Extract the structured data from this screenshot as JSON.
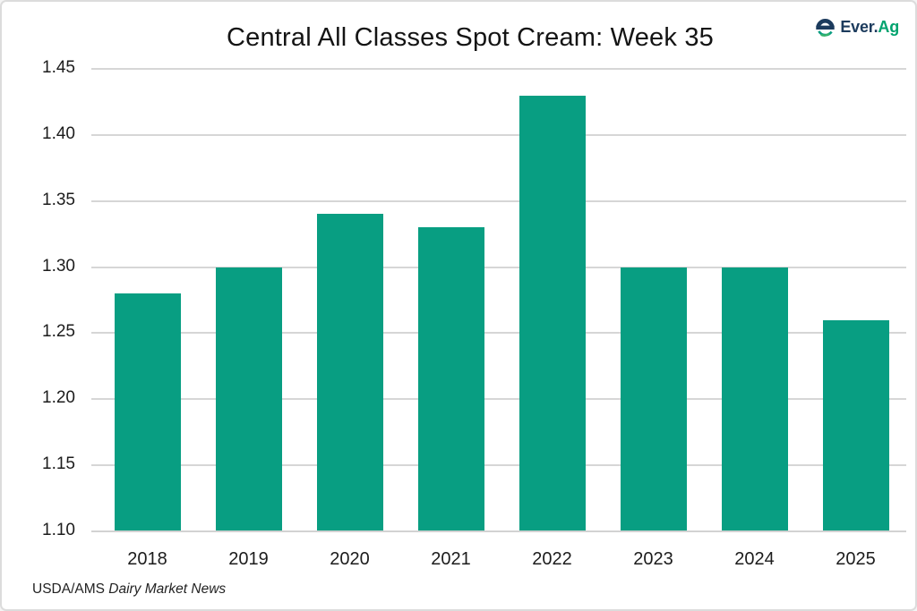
{
  "header": {
    "title": "Central All Classes Spot Cream: Week 35",
    "logo": {
      "brand_prefix": "Ever.",
      "brand_suffix": "Ag",
      "navy": "#1c3b5d",
      "green": "#00a36e",
      "icon": "everag-e-globe-icon"
    }
  },
  "chart_data": {
    "type": "bar",
    "title": "Central All Classes Spot Cream: Week 35",
    "categories": [
      "2018",
      "2019",
      "2020",
      "2021",
      "2022",
      "2023",
      "2024",
      "2025"
    ],
    "values": [
      1.28,
      1.3,
      1.34,
      1.33,
      1.43,
      1.3,
      1.3,
      1.26
    ],
    "xlabel": "",
    "ylabel": "",
    "ylim": [
      1.1,
      1.45
    ],
    "yticks": [
      1.1,
      1.15,
      1.2,
      1.25,
      1.3,
      1.35,
      1.4,
      1.45
    ],
    "ytick_labels": [
      "1.10",
      "1.15",
      "1.20",
      "1.25",
      "1.30",
      "1.35",
      "1.40",
      "1.45"
    ],
    "bar_color": "#089e82",
    "grid": true,
    "legend": null
  },
  "footer": {
    "source_regular": "USDA/AMS ",
    "source_italic": "Dairy Market News"
  }
}
